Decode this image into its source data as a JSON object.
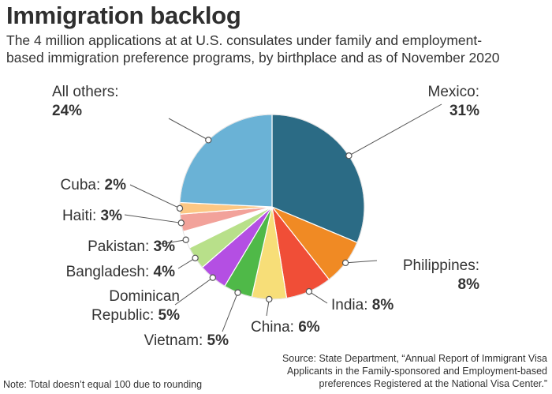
{
  "chart_data": {
    "type": "pie",
    "title": "Immigration backlog",
    "subtitle_line1": "The 4 million applications at at U.S. consulates under family and employment-",
    "subtitle_line2": "based immigration preference programs, by birthplace and as of November 2020",
    "start": "12 o'clock, clockwise",
    "slices": [
      {
        "label": "Mexico:",
        "value": 31,
        "value_text": "31%",
        "color": "#2b6b85"
      },
      {
        "label": "Philippines:",
        "value": 8,
        "value_text": "8%",
        "color": "#f08a24"
      },
      {
        "label": "India:",
        "value": 8,
        "value_text": "8%",
        "color": "#f04e37"
      },
      {
        "label": "China:",
        "value": 6,
        "value_text": "6%",
        "color": "#f7de78"
      },
      {
        "label": "Vietnam:",
        "value": 5,
        "value_text": "5%",
        "color": "#4fb948"
      },
      {
        "label": "Dominican",
        "label2": "Republic:",
        "value": 5,
        "value_text": "5%",
        "color": "#b44fe3"
      },
      {
        "label": "Bangladesh:",
        "value": 4,
        "value_text": "4%",
        "color": "#b8e08a"
      },
      {
        "label": "Pakistan:",
        "value": 3,
        "value_text": "3%",
        "color": "#ffffff"
      },
      {
        "label": "Haiti:",
        "value": 3,
        "value_text": "3%",
        "color": "#f2a29a"
      },
      {
        "label": "Cuba:",
        "value": 2,
        "value_text": "2%",
        "color": "#fcc783"
      },
      {
        "label": "All others:",
        "value": 24,
        "value_text": "24%",
        "color": "#6ab2d6"
      }
    ],
    "note": "Note: Total doesn’t equal 100 due to rounding",
    "source_line1": "Source: State Department, “Annual Report of Immigrant Visa",
    "source_line2": "Applicants in the Family-sponsored and Employment-based",
    "source_line3": "preferences Registered at the National Visa Center.”"
  }
}
